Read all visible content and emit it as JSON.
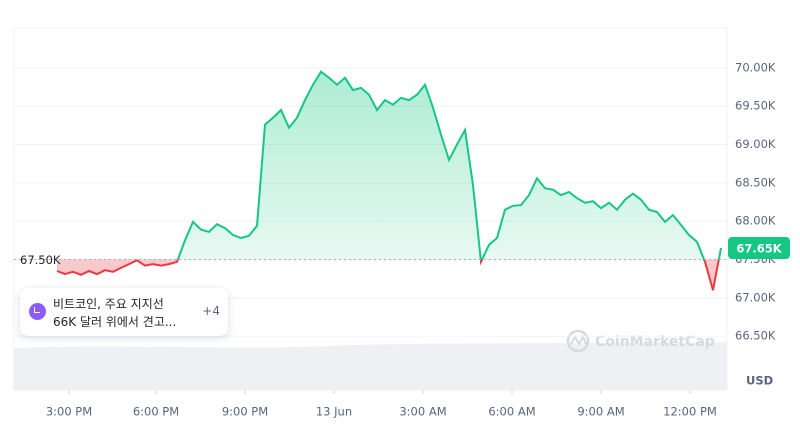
{
  "chart_data": {
    "type": "line",
    "values": [
      67350,
      67310,
      67340,
      67300,
      67350,
      67310,
      67360,
      67340,
      67390,
      67440,
      67490,
      67420,
      67440,
      67420,
      67440,
      67470,
      67750,
      67990,
      67890,
      67860,
      67960,
      67910,
      67820,
      67780,
      67810,
      67940,
      69260,
      69350,
      69450,
      69220,
      69350,
      69580,
      69780,
      69950,
      69870,
      69780,
      69870,
      69710,
      69740,
      69650,
      69450,
      69580,
      69520,
      69610,
      69580,
      69650,
      69780,
      69480,
      69130,
      68800,
      69000,
      69190,
      68470,
      67470,
      67690,
      67780,
      68150,
      68200,
      68210,
      68340,
      68560,
      68430,
      68410,
      68340,
      68380,
      68300,
      68240,
      68260,
      68170,
      68240,
      68150,
      68280,
      68360,
      68280,
      68150,
      68120,
      67990,
      68080,
      67950,
      67820,
      67730,
      67470,
      67100,
      67650
    ],
    "color_up": "#16c784",
    "color_down": "#ea3943",
    "baseline": {
      "value": 67500,
      "label": "67.50K"
    },
    "current": {
      "value": 67650,
      "label": "67.65K"
    },
    "xlim": [
      0,
      83
    ],
    "xticks": [
      {
        "value": 1.5,
        "label": "3:00 PM"
      },
      {
        "value": 12.375,
        "label": "6:00 PM"
      },
      {
        "value": 23.5,
        "label": "9:00 PM"
      },
      {
        "value": 34.625,
        "label": "13 Jun"
      },
      {
        "value": 45.75,
        "label": "3:00 AM"
      },
      {
        "value": 56.875,
        "label": "6:00 AM"
      },
      {
        "value": 68,
        "label": "9:00 AM"
      },
      {
        "value": 79.125,
        "label": "12:00 PM"
      }
    ],
    "ylim": [
      66450,
      70520
    ],
    "yticks": [
      {
        "value": 66500,
        "label": "66.50K"
      },
      {
        "value": 67000,
        "label": "67.00K"
      },
      {
        "value": 67500,
        "label": "67.50K"
      },
      {
        "value": 68000,
        "label": "68.00K"
      },
      {
        "value": 68500,
        "label": "68.50K"
      },
      {
        "value": 69000,
        "label": "69.00K"
      },
      {
        "value": 69500,
        "label": "69.50K"
      },
      {
        "value": 70000,
        "label": "70.00K"
      }
    ],
    "y_axis_label": "USD",
    "grid": true
  },
  "news": {
    "lines": [
      "비트코인, 주요 지지선",
      "66K 달러 위에서 견고..."
    ],
    "more": "+4"
  },
  "watermark": "CoinMarketCap"
}
